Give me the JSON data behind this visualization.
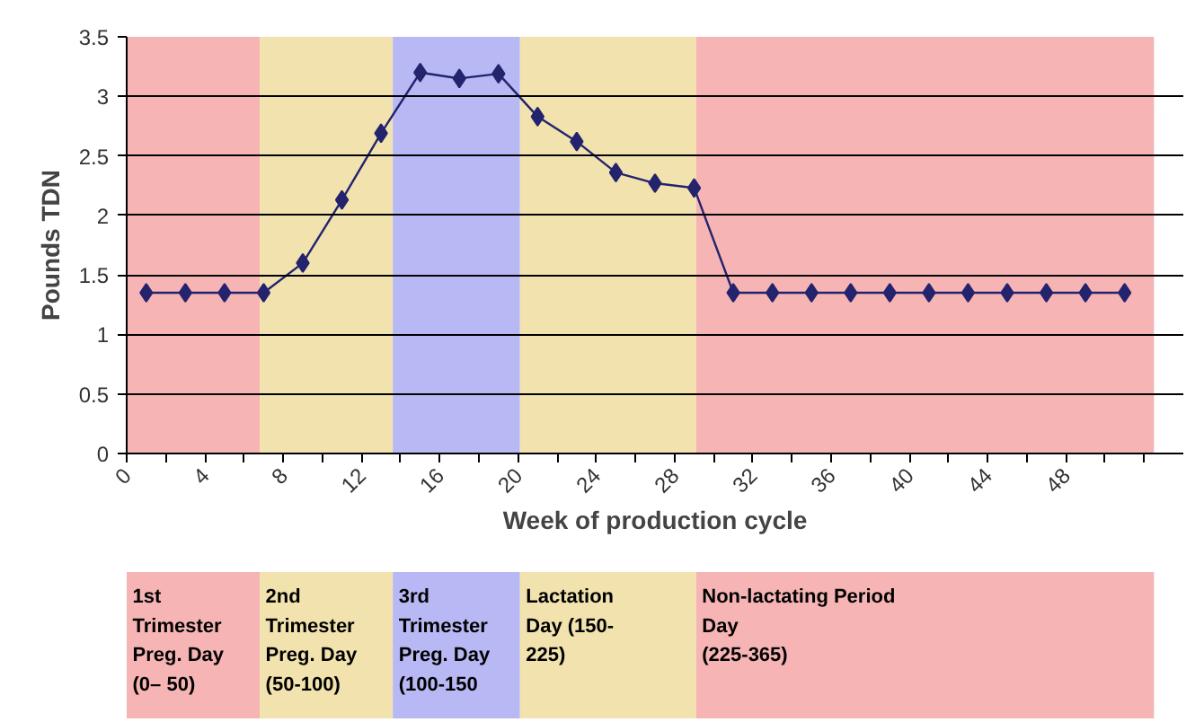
{
  "chart_data": {
    "type": "line",
    "xlabel": "Week of production cycle",
    "ylabel": "Pounds TDN",
    "x": [
      1,
      3,
      5,
      7,
      9,
      11,
      13,
      15,
      17,
      19,
      21,
      23,
      25,
      27,
      29,
      31,
      33,
      35,
      37,
      39,
      41,
      43,
      45,
      47,
      49,
      51
    ],
    "series": [
      {
        "color": "#23236e",
        "values": [
          1.35,
          1.35,
          1.35,
          1.35,
          1.6,
          2.13,
          2.69,
          3.2,
          3.15,
          3.19,
          2.83,
          2.62,
          2.36,
          2.27,
          2.23,
          1.35,
          1.35,
          1.35,
          1.35,
          1.35,
          1.35,
          1.35,
          1.35,
          1.35,
          1.35,
          1.35
        ]
      }
    ],
    "xlim": [
      0,
      54
    ],
    "xticks": [
      0,
      4,
      8,
      12,
      16,
      20,
      24,
      28,
      32,
      36,
      40,
      44,
      48
    ],
    "ylim": [
      0,
      3.5
    ],
    "yticks": [
      0,
      0.5,
      1,
      1.5,
      2,
      2.5,
      3,
      3.5
    ],
    "grid": "y",
    "marker": "diamond",
    "line_style": "solid",
    "bands": [
      {
        "axis": "x",
        "from": 0,
        "to": 6.8,
        "color": "#f6b4b4"
      },
      {
        "axis": "x",
        "from": 6.8,
        "to": 13.6,
        "color": "#f1e2ae"
      },
      {
        "axis": "x",
        "from": 13.6,
        "to": 20.1,
        "color": "#b8b8f4"
      },
      {
        "axis": "x",
        "from": 20.1,
        "to": 29.1,
        "color": "#f1e2ae"
      },
      {
        "axis": "x",
        "from": 29.1,
        "to": 52.5,
        "color": "#f6b4b4"
      }
    ],
    "annotations": [
      "1st\nTrimester\nPreg. Day\n(0– 50)",
      "2nd\nTrimester\nPreg. Day\n(50-100)",
      "3rd\nTrimester\nPreg. Day\n(100-150",
      "Lactation\nDay          (150-\n225)",
      "Non-lactating Period\nDay\n(225-365)"
    ]
  }
}
